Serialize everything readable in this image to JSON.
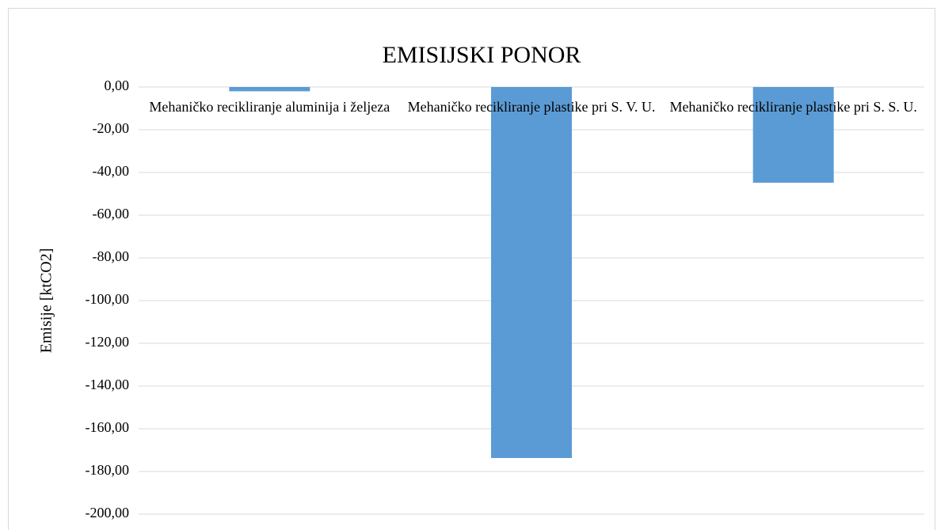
{
  "chart_data": {
    "type": "bar",
    "title": "EMISIJSKI PONOR",
    "y_label": "Emisije [ktCO2]",
    "categories": [
      "Mehaničko recikliranje aluminija i željeza",
      "Mehaničko recikliranje plastike pri S. V. U.",
      "Mehaničko recikliranje plastike pri S. S. U."
    ],
    "values": [
      -2,
      -173.7,
      -44.8
    ],
    "color": "#5b9bd5",
    "ylim": [
      -200,
      0
    ],
    "yticks": [
      {
        "value": 0,
        "label": "0,00"
      },
      {
        "value": -20,
        "label": "-20,00"
      },
      {
        "value": -40,
        "label": "-40,00"
      },
      {
        "value": -60,
        "label": "-60,00"
      },
      {
        "value": -80,
        "label": "-80,00"
      },
      {
        "value": -100,
        "label": "-100,00"
      },
      {
        "value": -120,
        "label": "-120,00"
      },
      {
        "value": -140,
        "label": "-140,00"
      },
      {
        "value": -160,
        "label": "-160,00"
      },
      {
        "value": -180,
        "label": "-180,00"
      },
      {
        "value": -200,
        "label": "-200,00"
      }
    ],
    "grid": true
  }
}
